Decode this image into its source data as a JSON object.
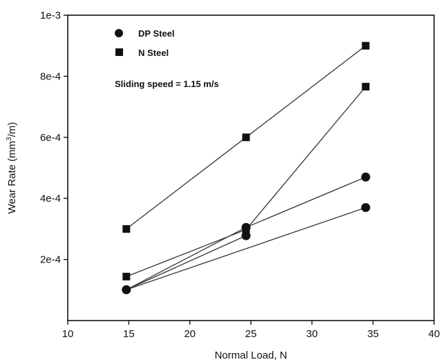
{
  "chart_data": {
    "type": "scatter",
    "xlabel": "Normal Load, N",
    "ylabel_prefix": "Wear Rate (mm",
    "ylabel_sup": "3",
    "ylabel_suffix": "/m)",
    "xlim": [
      10,
      40
    ],
    "ylim": [
      0,
      0.001
    ],
    "x_ticks": [
      10,
      15,
      20,
      25,
      30,
      35,
      40
    ],
    "y_ticks": [
      {
        "value": 0.0002,
        "label": "2e-4"
      },
      {
        "value": 0.0004,
        "label": "4e-4"
      },
      {
        "value": 0.0006,
        "label": "6e-4"
      },
      {
        "value": 0.0008,
        "label": "8e-4"
      },
      {
        "value": 0.001,
        "label": "1e-3"
      }
    ],
    "grid": false,
    "legend_position": "top-left",
    "annotation": "Sliding speed = 1.15 m/s",
    "series": [
      {
        "name": "DP Steel",
        "marker": "circle",
        "color": "#111111",
        "points": [
          [
            14.8,
            0.000101
          ],
          [
            24.6,
            0.000305
          ],
          [
            24.6,
            0.000278
          ],
          [
            34.4,
            0.00047
          ],
          [
            34.4,
            0.00037
          ]
        ],
        "lines": [
          [
            [
              14.8,
              0.000101
            ],
            [
              24.6,
              0.000305
            ],
            [
              34.4,
              0.00047
            ]
          ],
          [
            [
              14.8,
              0.000101
            ],
            [
              24.6,
              0.000278
            ]
          ],
          [
            [
              14.8,
              0.000101
            ],
            [
              34.4,
              0.00037
            ]
          ]
        ]
      },
      {
        "name": "N Steel",
        "marker": "square",
        "color": "#111111",
        "points": [
          [
            14.8,
            0.0003
          ],
          [
            24.6,
            0.0006
          ],
          [
            34.4,
            0.0009
          ],
          [
            14.8,
            0.000144
          ],
          [
            24.6,
            0.000298
          ],
          [
            34.4,
            0.000766
          ]
        ],
        "lines": [
          [
            [
              14.8,
              0.0003
            ],
            [
              24.6,
              0.0006
            ],
            [
              34.4,
              0.0009
            ]
          ],
          [
            [
              14.8,
              0.000144
            ],
            [
              24.6,
              0.000298
            ],
            [
              34.4,
              0.000766
            ]
          ]
        ]
      }
    ]
  }
}
